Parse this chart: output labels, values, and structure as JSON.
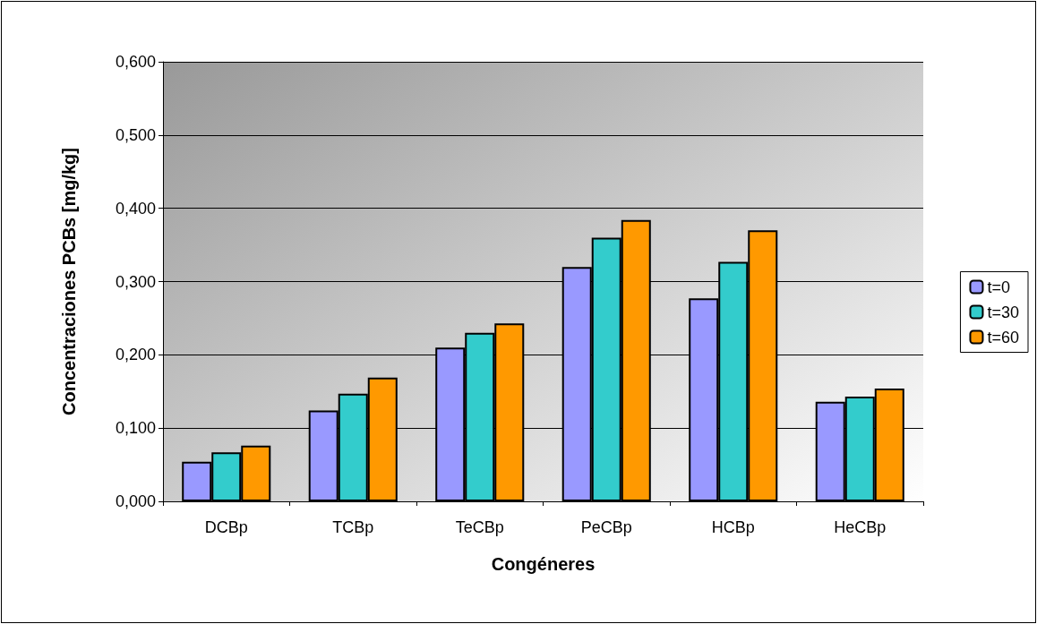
{
  "chart_data": {
    "type": "bar",
    "xlabel": "Congéneres",
    "ylabel": "Concentraciones PCBs [mg/kg]",
    "categories": [
      "DCBp",
      "TCBp",
      "TeCBp",
      "PeCBp",
      "HCBp",
      "HeCBp"
    ],
    "series": [
      {
        "name": "t=0",
        "color": "#9999ff",
        "values": [
          0.054,
          0.124,
          0.21,
          0.32,
          0.277,
          0.136
        ]
      },
      {
        "name": "t=30",
        "color": "#33cccc",
        "values": [
          0.067,
          0.147,
          0.23,
          0.36,
          0.327,
          0.143
        ]
      },
      {
        "name": "t=60",
        "color": "#ff9900",
        "values": [
          0.076,
          0.169,
          0.243,
          0.384,
          0.37,
          0.154
        ]
      }
    ],
    "ylim": [
      0,
      0.6
    ],
    "yticks": [
      {
        "value": 0,
        "label": "0,000"
      },
      {
        "value": 0.1,
        "label": "0,100"
      },
      {
        "value": 0.2,
        "label": "0,200"
      },
      {
        "value": 0.3,
        "label": "0,300"
      },
      {
        "value": 0.4,
        "label": "0,400"
      },
      {
        "value": 0.5,
        "label": "0,500"
      },
      {
        "value": 0.6,
        "label": "0,600"
      }
    ],
    "grid": "y",
    "legend": "right"
  }
}
